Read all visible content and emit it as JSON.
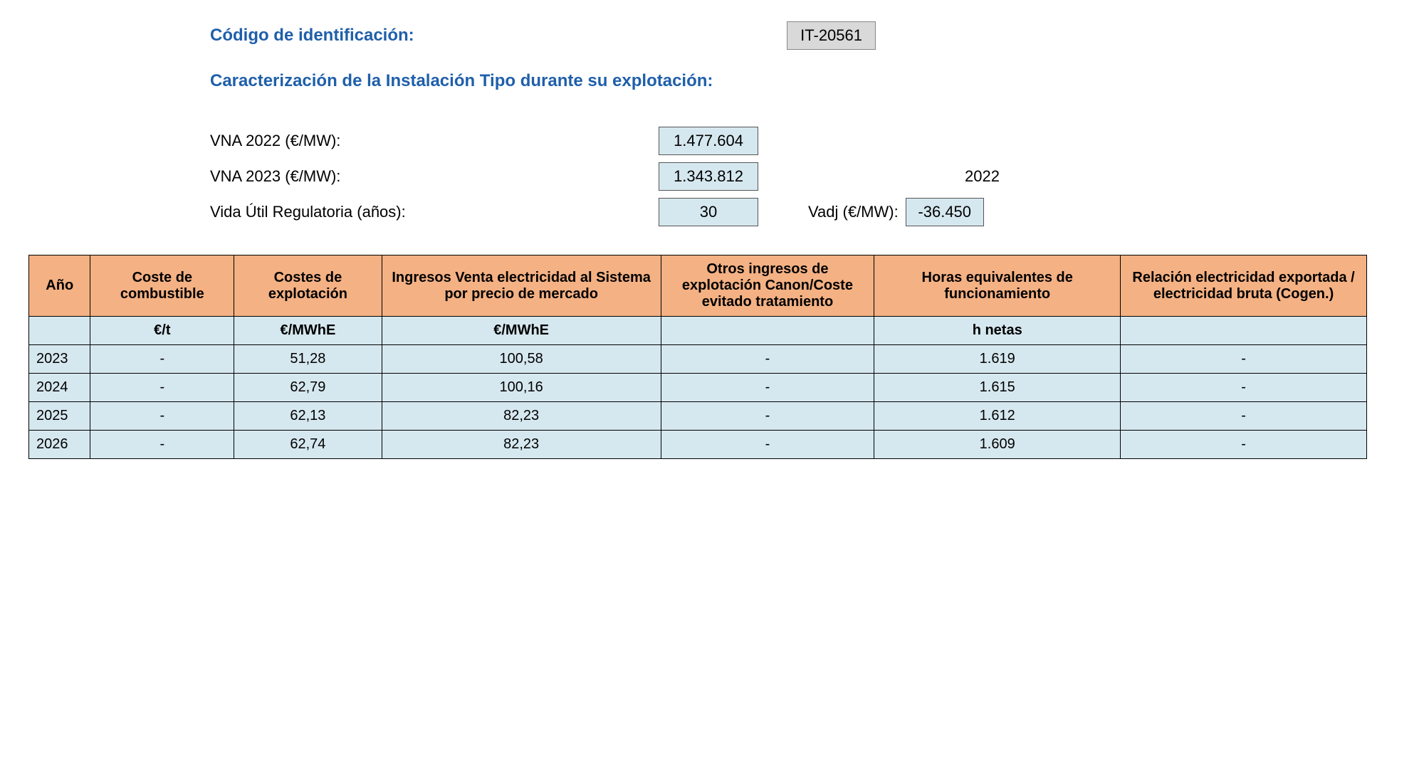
{
  "header": {
    "id_label": "Código de identificación:",
    "id_value": "IT-20561",
    "subtitle": "Caracterización de la Instalación Tipo durante su explotación:"
  },
  "params": {
    "vna2022_label": "VNA 2022 (€/MW):",
    "vna2022_value": "1.477.604",
    "vna2023_label": "VNA 2023 (€/MW):",
    "vna2023_value": "1.343.812",
    "year_text": "2022",
    "vida_label": "Vida Útil Regulatoria (años):",
    "vida_value": "30",
    "vadj_label": "Vadj (€/MW):",
    "vadj_value": "-36.450"
  },
  "table": {
    "columns": [
      "Año",
      "Coste de combustible",
      "Costes de explotación",
      "Ingresos Venta electricidad al Sistema por precio de mercado",
      "Otros ingresos de explotación Canon/Coste evitado tratamiento",
      "Horas equivalentes de funcionamiento",
      "Relación electricidad exportada / electricidad bruta\n(Cogen.)"
    ],
    "units": [
      "",
      "€/t",
      "€/MWhE",
      "€/MWhE",
      "",
      "h netas",
      ""
    ],
    "rows": [
      [
        "2023",
        "-",
        "51,28",
        "100,58",
        "-",
        "1.619",
        "-"
      ],
      [
        "2024",
        "-",
        "62,79",
        "100,16",
        "-",
        "1.615",
        "-"
      ],
      [
        "2025",
        "-",
        "62,13",
        "82,23",
        "-",
        "1.612",
        "-"
      ],
      [
        "2026",
        "-",
        "62,74",
        "82,23",
        "-",
        "1.609",
        "-"
      ]
    ],
    "header_bg": "#f4b183",
    "cell_bg": "#d6e8ef",
    "border_color": "#000000",
    "heading_color": "#1f5faa"
  }
}
